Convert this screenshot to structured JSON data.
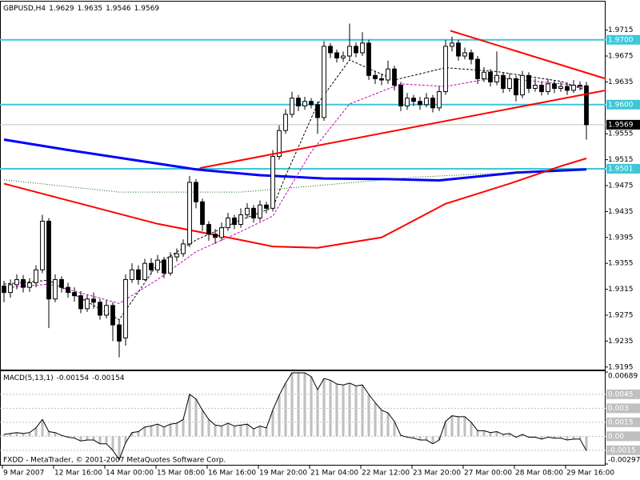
{
  "chart_data": [
    {
      "type": "candlestick",
      "title": "GBPUSD,H4",
      "categories": [
        "9 Mar 2007",
        null,
        null,
        null,
        null,
        null,
        null,
        null,
        "12 Mar 16:00",
        null,
        null,
        null,
        null,
        null,
        null,
        null,
        "14 Mar 00:00",
        null,
        null,
        null,
        null,
        null,
        null,
        null,
        "15 Mar 08:00",
        null,
        null,
        null,
        null,
        null,
        null,
        null,
        "16 Mar 16:00",
        null,
        null,
        null,
        null,
        null,
        null,
        null,
        "19 Mar 20:00",
        null,
        null,
        null,
        null,
        null,
        null,
        null,
        "21 Mar 04:00",
        null,
        null,
        null,
        null,
        null,
        null,
        null,
        "22 Mar 12:00",
        null,
        null,
        null,
        null,
        null,
        null,
        null,
        "23 Mar 20:00",
        null,
        null,
        null,
        null,
        null,
        null,
        null,
        "27 Mar 00:00",
        null,
        null,
        null,
        null,
        null,
        null,
        null,
        "28 Mar 08:00",
        null,
        null,
        null,
        null,
        null,
        null,
        null,
        "29 Mar 16:00",
        null,
        null,
        null
      ],
      "open": [
        1.932,
        1.931,
        1.9322,
        1.933,
        1.9318,
        1.9325,
        1.9345,
        1.942,
        1.93,
        1.933,
        1.9318,
        1.931,
        1.9305,
        1.9285,
        1.93,
        1.9295,
        1.9275,
        1.929,
        1.926,
        1.924,
        1.933,
        1.9345,
        1.933,
        1.9355,
        1.9345,
        1.936,
        1.934,
        1.9365,
        1.937,
        1.9385,
        1.948,
        1.945,
        1.9415,
        1.94,
        1.9395,
        1.941,
        1.9425,
        1.9415,
        1.943,
        1.944,
        1.9425,
        1.9445,
        1.944,
        1.952,
        1.956,
        1.9585,
        1.961,
        1.9598,
        1.9605,
        1.96,
        1.958,
        1.969,
        1.968,
        1.9672,
        1.9675,
        1.969,
        1.968,
        1.9695,
        1.9645,
        1.964,
        1.9638,
        1.9655,
        1.963,
        1.9598,
        1.961,
        1.9605,
        1.96,
        1.961,
        1.9595,
        1.962,
        1.969,
        1.9695,
        1.9675,
        1.968,
        1.967,
        1.964,
        1.965,
        1.9635,
        1.9645,
        1.9625,
        1.964,
        1.9615,
        1.9645,
        1.9625,
        1.963,
        1.962,
        1.9632,
        1.9625,
        1.9628,
        1.9622,
        1.963,
        1.9629
      ],
      "high": [
        1.9328,
        1.933,
        1.9338,
        1.9337,
        1.9332,
        1.9352,
        1.943,
        1.9425,
        1.9338,
        1.9335,
        1.9325,
        1.9318,
        1.9312,
        1.9306,
        1.931,
        1.93,
        1.9298,
        1.9295,
        1.9268,
        1.9338,
        1.9355,
        1.9352,
        1.9362,
        1.9363,
        1.9368,
        1.9365,
        1.9372,
        1.9378,
        1.9392,
        1.949,
        1.9485,
        1.9455,
        1.942,
        1.9408,
        1.9418,
        1.9433,
        1.943,
        1.944,
        1.9448,
        1.9445,
        1.9452,
        1.945,
        1.953,
        1.9568,
        1.9593,
        1.962,
        1.9615,
        1.9612,
        1.961,
        1.9605,
        1.9698,
        1.9695,
        1.9685,
        1.9682,
        1.9725,
        1.9696,
        1.9712,
        1.97,
        1.9652,
        1.9648,
        1.9668,
        1.966,
        1.9635,
        1.9618,
        1.9615,
        1.9612,
        1.9618,
        1.9615,
        1.9628,
        1.97,
        1.9705,
        1.97,
        1.9688,
        1.9685,
        1.9675,
        1.9658,
        1.9655,
        1.9682,
        1.965,
        1.9648,
        1.9645,
        1.9652,
        1.965,
        1.964,
        1.9636,
        1.964,
        1.9638,
        1.9635,
        1.9634,
        1.9638,
        1.9636,
        1.9635
      ],
      "low": [
        1.9295,
        1.9302,
        1.9315,
        1.931,
        1.9311,
        1.9318,
        1.934,
        1.9255,
        1.9295,
        1.931,
        1.9302,
        1.9296,
        1.9278,
        1.928,
        1.9285,
        1.9268,
        1.927,
        1.9235,
        1.921,
        1.9228,
        1.9325,
        1.9322,
        1.9328,
        1.9338,
        1.934,
        1.9332,
        1.9336,
        1.9358,
        1.9365,
        1.938,
        1.944,
        1.9405,
        1.939,
        1.9385,
        1.939,
        1.9405,
        1.9408,
        1.941,
        1.9425,
        1.9418,
        1.942,
        1.9432,
        1.9435,
        1.9515,
        1.9555,
        1.958,
        1.959,
        1.9592,
        1.9594,
        1.9555,
        1.9575,
        1.9672,
        1.9665,
        1.9666,
        1.967,
        1.9673,
        1.9675,
        1.9638,
        1.9632,
        1.963,
        1.9632,
        1.9622,
        1.959,
        1.9592,
        1.9598,
        1.9592,
        1.9596,
        1.9588,
        1.959,
        1.9615,
        1.9682,
        1.9668,
        1.967,
        1.9662,
        1.9632,
        1.9635,
        1.9628,
        1.963,
        1.9618,
        1.962,
        1.9605,
        1.961,
        1.9618,
        1.962,
        1.9614,
        1.9615,
        1.9618,
        1.962,
        1.9615,
        1.9618,
        1.9622,
        1.9546
      ],
      "close": [
        1.931,
        1.9322,
        1.933,
        1.9318,
        1.9325,
        1.9345,
        1.942,
        1.93,
        1.933,
        1.9318,
        1.931,
        1.9305,
        1.9285,
        1.93,
        1.9295,
        1.9275,
        1.929,
        1.926,
        1.9235,
        1.933,
        1.9345,
        1.933,
        1.9355,
        1.9345,
        1.936,
        1.934,
        1.9365,
        1.937,
        1.9385,
        1.948,
        1.945,
        1.9415,
        1.94,
        1.9395,
        1.941,
        1.9425,
        1.9415,
        1.943,
        1.944,
        1.9425,
        1.9445,
        1.944,
        1.952,
        1.956,
        1.9585,
        1.961,
        1.9598,
        1.9605,
        1.96,
        1.958,
        1.969,
        1.968,
        1.9672,
        1.9675,
        1.969,
        1.968,
        1.9695,
        1.9645,
        1.964,
        1.9638,
        1.9655,
        1.963,
        1.9598,
        1.961,
        1.9605,
        1.96,
        1.961,
        1.9595,
        1.962,
        1.969,
        1.9695,
        1.9675,
        1.968,
        1.967,
        1.964,
        1.965,
        1.9635,
        1.9645,
        1.9625,
        1.964,
        1.9615,
        1.9645,
        1.9625,
        1.963,
        1.962,
        1.9632,
        1.9625,
        1.9628,
        1.9622,
        1.963,
        1.9629,
        1.9569
      ],
      "up_color": "#ffffff",
      "down_color": "#000000",
      "xlim": [
        -0.625,
        94
      ],
      "ylim": [
        1.9191,
        1.9759
      ],
      "yticks": [
        1.9715,
        1.9675,
        1.9635,
        1.9555,
        1.9515,
        1.9475,
        1.9435,
        1.9395,
        1.9355,
        1.9315,
        1.9275,
        1.9235,
        1.9195
      ],
      "levels": [
        {
          "value": 1.97,
          "label": "1.9700"
        },
        {
          "value": 1.96,
          "label": "1.9600"
        },
        1.9501
      ],
      "level_color": "#3cc8d8",
      "price_line_color": "#c0c0c0",
      "lines": [
        {
          "color": "#0000ff",
          "style": "thick",
          "x": [
            0,
            10,
            20,
            30,
            40,
            50,
            60,
            68,
            80,
            91
          ],
          "values": [
            1.9546,
            1.953,
            1.9515,
            1.95,
            1.9491,
            1.9486,
            1.9485,
            1.9483,
            1.9495,
            1.95
          ]
        },
        {
          "color": "#ff0000",
          "style": "medium",
          "x": [
            0,
            12,
            24,
            37,
            42,
            49,
            59,
            69,
            79,
            87,
            91
          ],
          "values": [
            1.9478,
            1.9447,
            1.9416,
            1.9391,
            1.9381,
            1.9379,
            1.9395,
            1.9447,
            1.9478,
            1.9505,
            1.9517
          ]
        },
        {
          "color": "#006400",
          "style": "dotted",
          "x": [
            0,
            18,
            37,
            49,
            64,
            77,
            91
          ],
          "values": [
            1.9484,
            1.9465,
            1.9465,
            1.9475,
            1.9488,
            1.9494,
            1.95
          ]
        },
        {
          "color": "#c000c0",
          "style": "dashed",
          "x": [
            0,
            7,
            18,
            24,
            30,
            37,
            42,
            48,
            54,
            62,
            69,
            77,
            87,
            91
          ],
          "values": [
            1.9317,
            1.9323,
            1.9293,
            1.933,
            1.9373,
            1.9404,
            1.9428,
            1.9527,
            1.9601,
            1.9632,
            1.9628,
            1.9642,
            1.9632,
            1.9626
          ]
        },
        {
          "color": "#000000",
          "style": "dashed",
          "x": [
            0,
            7,
            18,
            24,
            30,
            37,
            42,
            44,
            49,
            54,
            61,
            69,
            77,
            87,
            91
          ],
          "values": [
            1.9323,
            1.9329,
            1.9268,
            1.9354,
            1.9391,
            1.9422,
            1.9441,
            1.949,
            1.9601,
            1.9669,
            1.9638,
            1.9657,
            1.9651,
            1.9636,
            1.9622
          ]
        }
      ],
      "trendlines": [
        {
          "color": "#ff0000",
          "x": [
            69.75,
            94
          ],
          "values": [
            1.9714,
            1.964
          ]
        },
        {
          "color": "#ff0000",
          "x": [
            30.6,
            94
          ],
          "values": [
            1.9502,
            1.9622
          ]
        }
      ]
    },
    {
      "type": "macd",
      "title": "MACD(5,13,1)",
      "values": [
        0.0002,
        0.0003,
        0.0004,
        0.0003,
        0.0004,
        0.0009,
        0.0018,
        0.0005,
        0.0004,
        0.0001,
        -0.0001,
        -0.0002,
        -0.0005,
        -0.0004,
        -0.0004,
        -0.0008,
        -0.0008,
        -0.0015,
        -0.0025,
        -0.0007,
        0.0004,
        0.0005,
        0.001,
        0.0011,
        0.0013,
        0.001,
        0.0013,
        0.0014,
        0.0018,
        0.0045,
        0.004,
        0.0028,
        0.0018,
        0.0012,
        0.0011,
        0.0014,
        0.0011,
        0.0012,
        0.0013,
        0.0008,
        0.0011,
        0.0009,
        0.0028,
        0.0044,
        0.0057,
        0.0068,
        0.0068,
        0.0068,
        0.0064,
        0.005,
        0.0062,
        0.006,
        0.0056,
        0.0055,
        0.0057,
        0.0054,
        0.0055,
        0.0045,
        0.0036,
        0.0028,
        0.0025,
        0.0016,
        0.0001,
        -0.0001,
        -0.0002,
        -0.0004,
        -0.0004,
        -0.0008,
        -0.0004,
        0.0016,
        0.0022,
        0.0021,
        0.0021,
        0.0015,
        0.0006,
        0.0006,
        0.0004,
        0.0005,
        0.0002,
        0.0003,
        -0.0001,
        0.0002,
        -0.0001,
        -0.0001,
        -0.0003,
        -0.0001,
        -0.0002,
        -0.0002,
        -0.0004,
        -0.0003,
        -0.0003,
        -0.00154
      ],
      "color": "#c0c0c0",
      "line_color": "#000000",
      "ylim": [
        -0.00297,
        0.00689
      ],
      "yticks": [
        0.00689,
        -0.00297
      ],
      "levels": [
        0.0045,
        0.003,
        0.0015,
        {
          "value": 0,
          "label": "0.00"
        },
        -0.0015
      ],
      "level_color": "#c0c0c0"
    }
  ],
  "footer": "FXDD - MetaTrader, © 2001-2007 MetaQuotes Software Corp."
}
